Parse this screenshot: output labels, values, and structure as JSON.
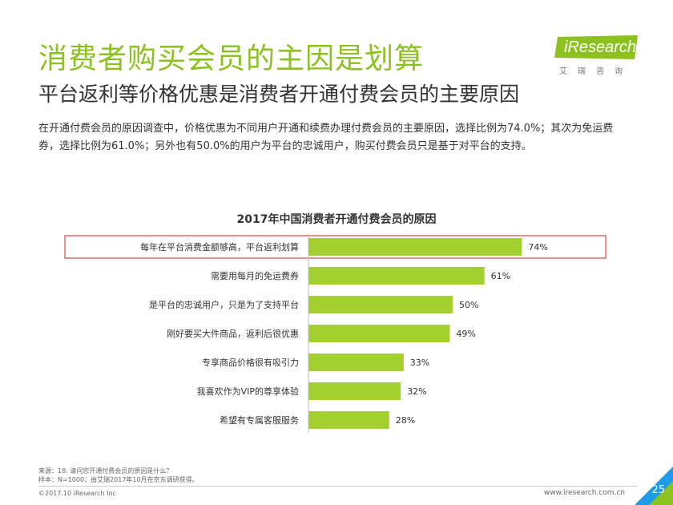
{
  "header": {
    "title": "消费者购买会员的主因是划算",
    "subtitle": "平台返利等价格优惠是消费者开通付费会员的主要原因",
    "description": "在开通付费会员的原因调查中，价格优惠为不同用户开通和续费办理付费会员的主要原因，选择比例为74.0%；其次为免运费券，选择比例为61.0%；另外也有50.0%的用户为平台的忠诚用户，购买付费会员只是基于对平台的支持。"
  },
  "logo": {
    "name": "iResearch",
    "subtitle": "艾瑞咨询"
  },
  "chart_data": {
    "type": "bar",
    "orientation": "horizontal",
    "title": "2017年中国消费者开通付费会员的原因",
    "categories": [
      "每年在平台消费金额够高，平台返利划算",
      "需要用每月的免运费券",
      "是平台的忠诚用户，只是为了支持平台",
      "刚好要买大件商品，返利后很优惠",
      "专享商品价格很有吸引力",
      "我喜欢作为VIP的尊享体验",
      "希望有专属客服服务"
    ],
    "values": [
      74,
      61,
      50,
      49,
      33,
      32,
      28
    ],
    "value_labels": [
      "74%",
      "61%",
      "50%",
      "49%",
      "33%",
      "32%",
      "28%"
    ],
    "highlighted_category": "每年在平台消费金额够高，平台返利划算",
    "xlim": [
      0,
      100
    ],
    "colors": {
      "bar": "#a3cf2f",
      "highlight_box": "#e06c6c"
    }
  },
  "footer": {
    "source": "来源：18. 请问您开通付费会员的原因是什么？",
    "sample": "样本：N=1000；由艾瑞2017年10月在京东调研获得。",
    "copyright": "©2017.10 iResearch Inc",
    "url": "www.iresearch.com.cn",
    "page": "25"
  }
}
